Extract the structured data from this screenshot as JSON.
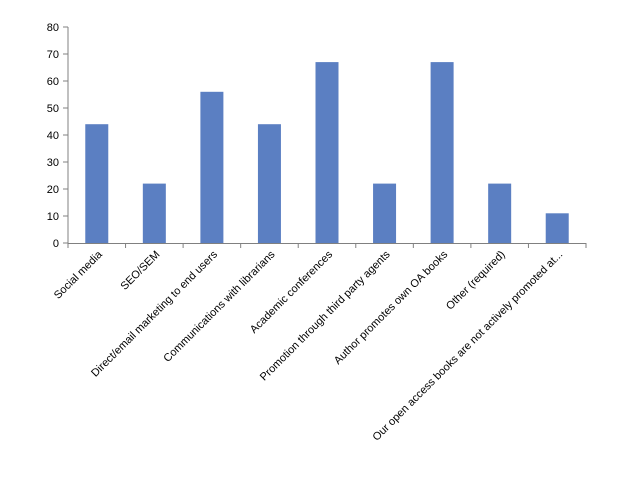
{
  "chart_data": {
    "type": "bar",
    "categories": [
      "Social media",
      "SEO/SEM",
      "Direct/email marketing to end users",
      "Communications with librarians",
      "Academic conferences",
      "Promotion through third party agents",
      "Author promotes own OA books",
      "Other (required)",
      "Our open access books are not actively promoted at..."
    ],
    "values": [
      44,
      22,
      56,
      44,
      67,
      22,
      67,
      22,
      11
    ],
    "yticks": [
      "0",
      "10",
      "20",
      "30",
      "40",
      "50",
      "60",
      "70",
      "80"
    ],
    "ylim": [
      0,
      80
    ],
    "grid": false,
    "legend": "none",
    "bar_color": "#5b7fc2",
    "axis_color": "#808080"
  }
}
